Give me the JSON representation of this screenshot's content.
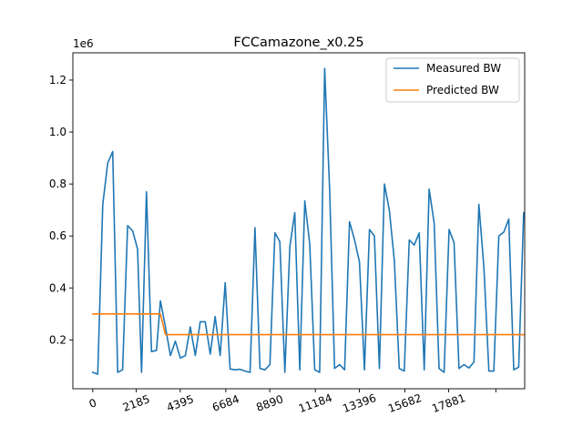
{
  "chart_data": {
    "type": "line",
    "title": "FCCamazone_x0.25",
    "xlabel": "",
    "ylabel": "",
    "y_offset_label": "1e6",
    "xlim": [
      -1000,
      21700
    ],
    "ylim": [
      0.012,
      1.305
    ],
    "x_ticks": [
      {
        "value": 0,
        "label": "0"
      },
      {
        "value": 2185,
        "label": "2185"
      },
      {
        "value": 4395,
        "label": "4395"
      },
      {
        "value": 6684,
        "label": "6684"
      },
      {
        "value": 8890,
        "label": "8890"
      },
      {
        "value": 11184,
        "label": "11184"
      },
      {
        "value": 13396,
        "label": "13396"
      },
      {
        "value": 15682,
        "label": "15682"
      },
      {
        "value": 17881,
        "label": "17881"
      },
      {
        "value": 20250,
        "label": ""
      }
    ],
    "y_ticks": [
      {
        "value": 0.2,
        "label": "0.2"
      },
      {
        "value": 0.4,
        "label": "0.4"
      },
      {
        "value": 0.6,
        "label": "0.6"
      },
      {
        "value": 0.8,
        "label": "0.8"
      },
      {
        "value": 1.0,
        "label": "1.0"
      },
      {
        "value": 1.2,
        "label": "1.2"
      }
    ],
    "legend_position": "top-right",
    "grid": false,
    "series": [
      {
        "name": "Measured BW",
        "color": "#1f77b4",
        "points": [
          [
            0,
            0.075
          ],
          [
            250,
            0.068
          ],
          [
            500,
            0.72
          ],
          [
            750,
            0.88
          ],
          [
            1000,
            0.925
          ],
          [
            1250,
            0.075
          ],
          [
            1500,
            0.085
          ],
          [
            1750,
            0.64
          ],
          [
            2000,
            0.62
          ],
          [
            2250,
            0.55
          ],
          [
            2450,
            0.075
          ],
          [
            2700,
            0.77
          ],
          [
            2950,
            0.155
          ],
          [
            3200,
            0.16
          ],
          [
            3400,
            0.35
          ],
          [
            3650,
            0.25
          ],
          [
            3900,
            0.14
          ],
          [
            4150,
            0.195
          ],
          [
            4400,
            0.13
          ],
          [
            4650,
            0.14
          ],
          [
            4900,
            0.25
          ],
          [
            5150,
            0.14
          ],
          [
            5400,
            0.27
          ],
          [
            5650,
            0.27
          ],
          [
            5900,
            0.145
          ],
          [
            6150,
            0.29
          ],
          [
            6400,
            0.14
          ],
          [
            6650,
            0.42
          ],
          [
            6900,
            0.088
          ],
          [
            7150,
            0.085
          ],
          [
            7400,
            0.087
          ],
          [
            7650,
            0.08
          ],
          [
            7900,
            0.075
          ],
          [
            8150,
            0.632
          ],
          [
            8400,
            0.09
          ],
          [
            8650,
            0.085
          ],
          [
            8900,
            0.105
          ],
          [
            9150,
            0.612
          ],
          [
            9400,
            0.578
          ],
          [
            9650,
            0.075
          ],
          [
            9900,
            0.56
          ],
          [
            10150,
            0.69
          ],
          [
            10400,
            0.085
          ],
          [
            10650,
            0.735
          ],
          [
            10900,
            0.57
          ],
          [
            11150,
            0.085
          ],
          [
            11400,
            0.075
          ],
          [
            11650,
            1.245
          ],
          [
            11900,
            0.775
          ],
          [
            12150,
            0.09
          ],
          [
            12400,
            0.105
          ],
          [
            12650,
            0.085
          ],
          [
            12900,
            0.655
          ],
          [
            13150,
            0.585
          ],
          [
            13400,
            0.5
          ],
          [
            13650,
            0.085
          ],
          [
            13900,
            0.625
          ],
          [
            14150,
            0.6
          ],
          [
            14400,
            0.09
          ],
          [
            14650,
            0.8
          ],
          [
            14900,
            0.7
          ],
          [
            15150,
            0.505
          ],
          [
            15400,
            0.09
          ],
          [
            15650,
            0.08
          ],
          [
            15900,
            0.585
          ],
          [
            16150,
            0.565
          ],
          [
            16400,
            0.612
          ],
          [
            16650,
            0.085
          ],
          [
            16900,
            0.78
          ],
          [
            17150,
            0.65
          ],
          [
            17400,
            0.09
          ],
          [
            17650,
            0.075
          ],
          [
            17900,
            0.625
          ],
          [
            18150,
            0.575
          ],
          [
            18400,
            0.09
          ],
          [
            18650,
            0.105
          ],
          [
            18900,
            0.092
          ],
          [
            19150,
            0.115
          ],
          [
            19400,
            0.722
          ],
          [
            19650,
            0.48
          ],
          [
            19900,
            0.08
          ],
          [
            20150,
            0.08
          ],
          [
            20400,
            0.6
          ],
          [
            20650,
            0.615
          ],
          [
            20900,
            0.665
          ],
          [
            21150,
            0.085
          ],
          [
            21400,
            0.095
          ],
          [
            21650,
            0.69
          ]
        ]
      },
      {
        "name": "Predicted BW",
        "color": "#ff7f0e",
        "points": [
          [
            0,
            0.3
          ],
          [
            3400,
            0.3
          ],
          [
            3650,
            0.22
          ],
          [
            21650,
            0.22
          ]
        ]
      }
    ]
  }
}
